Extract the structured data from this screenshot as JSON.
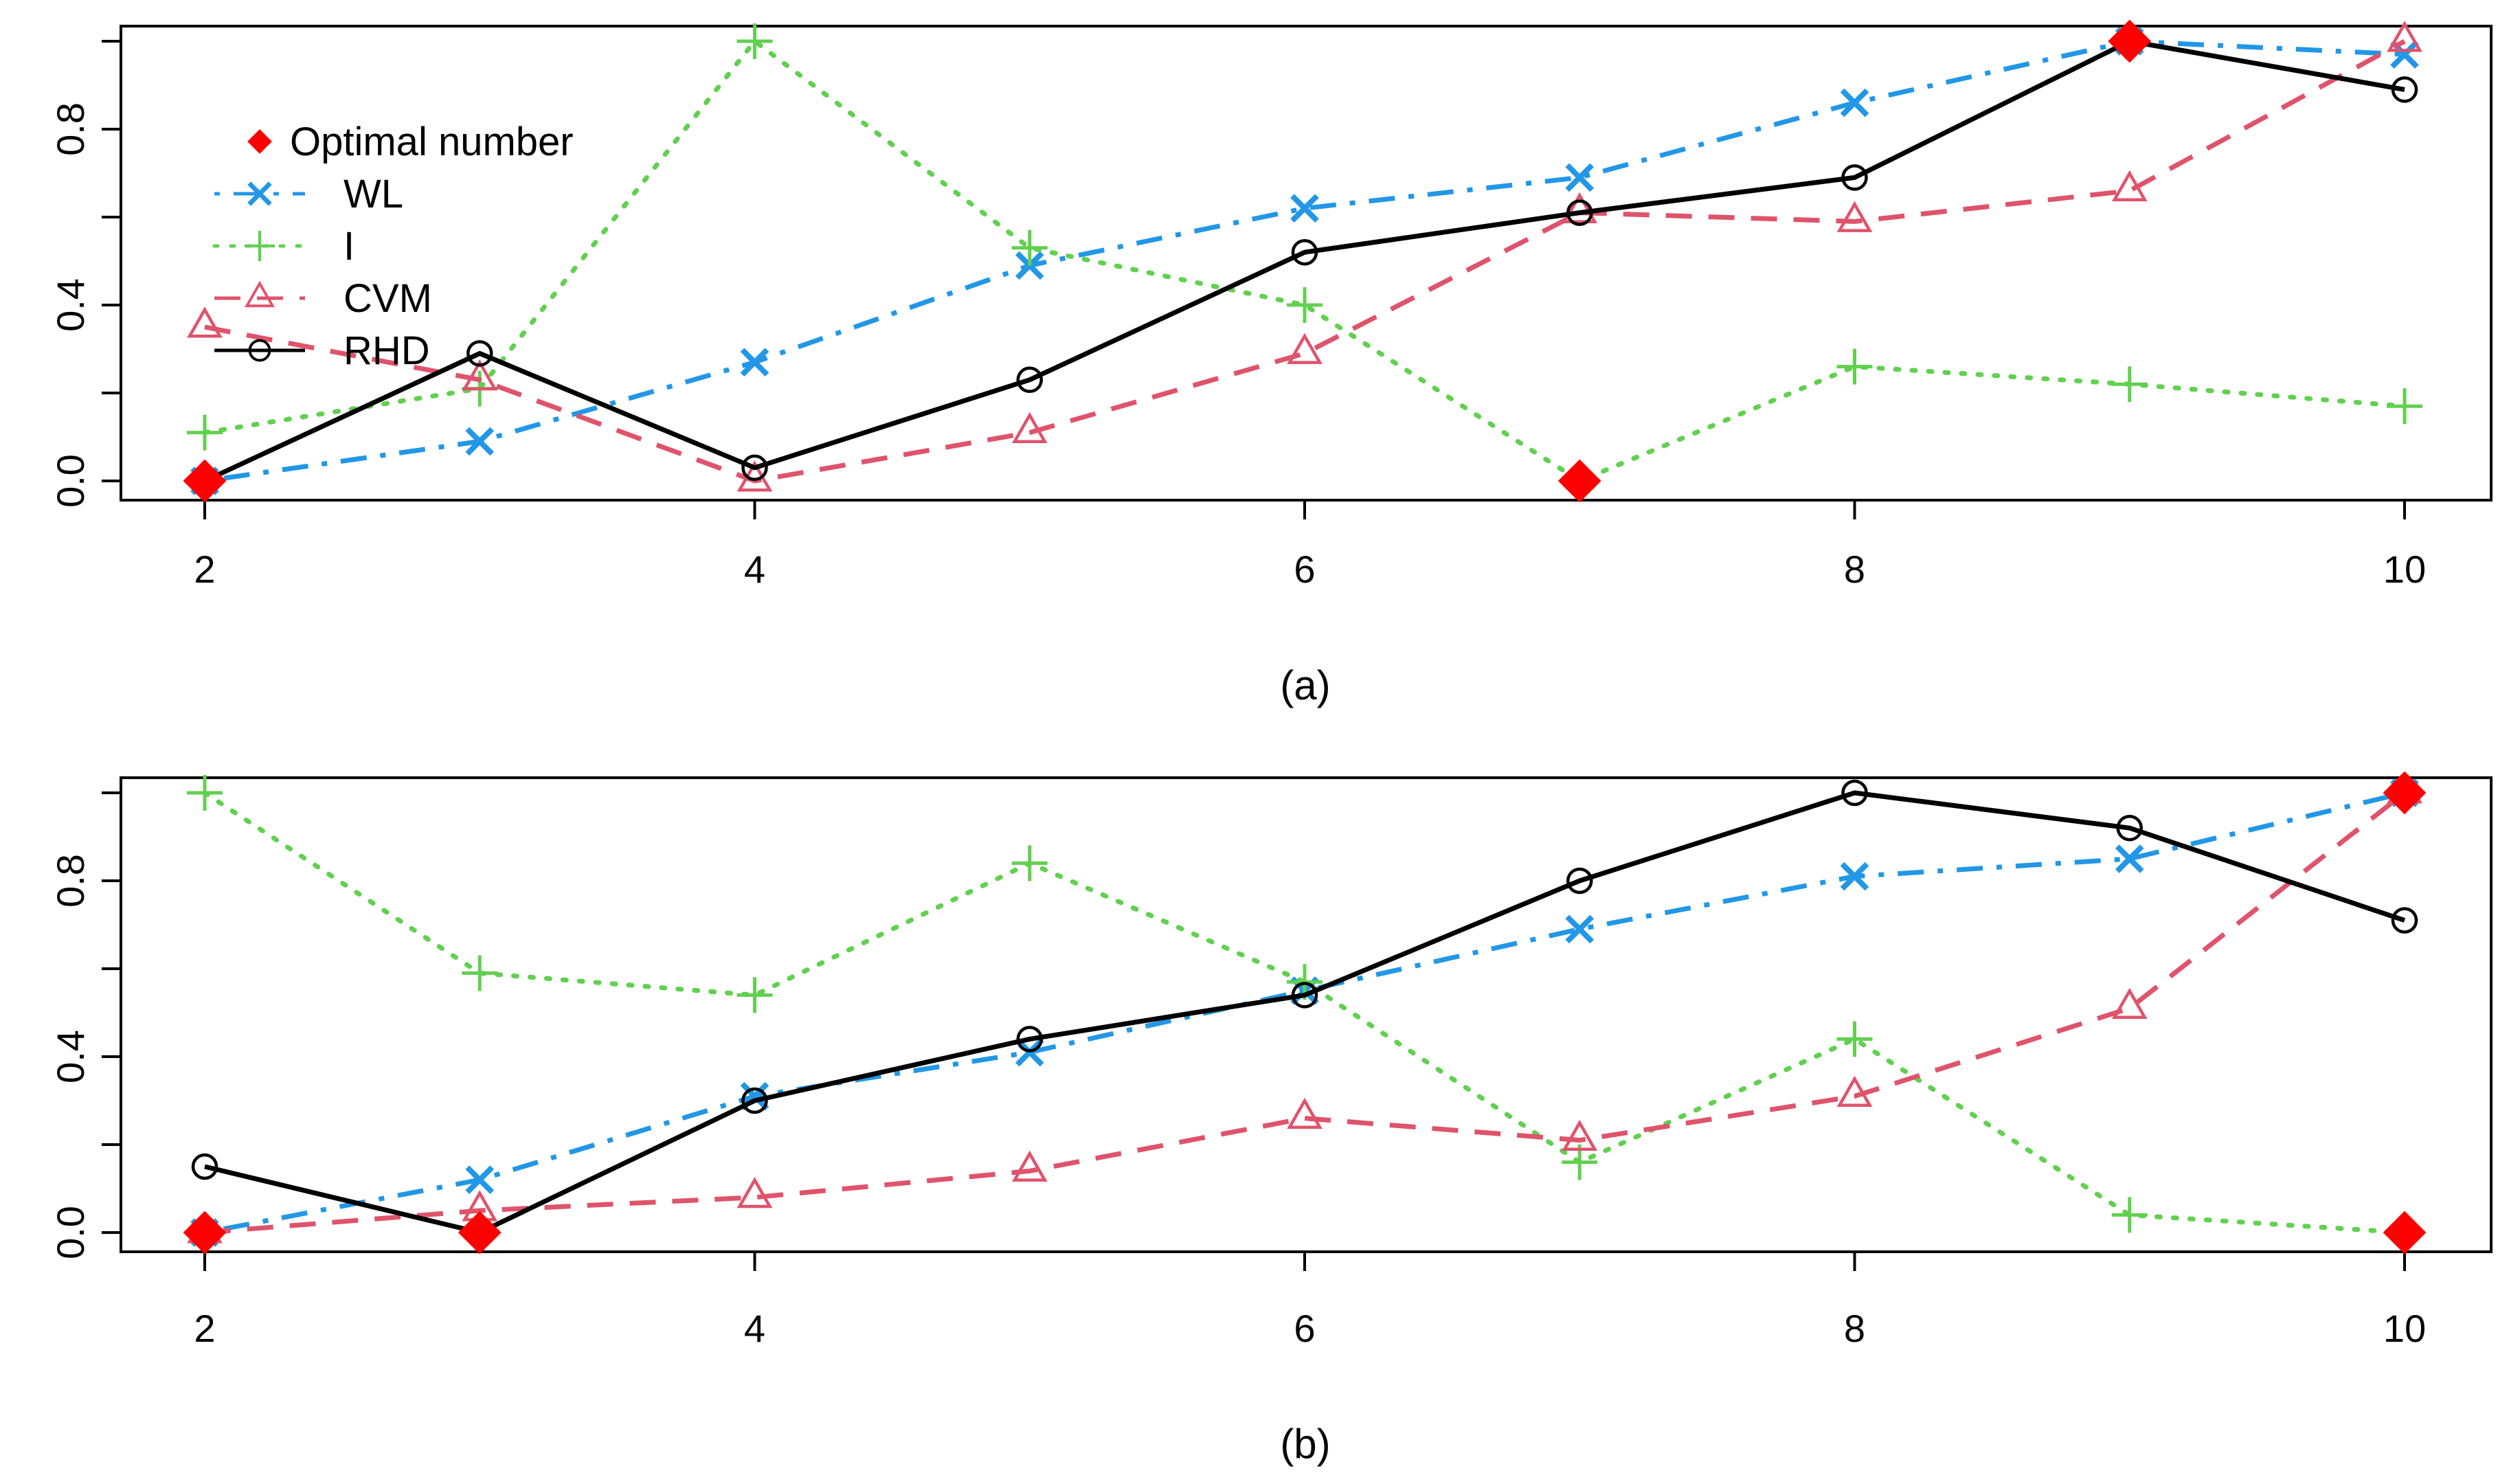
{
  "chart_data": [
    {
      "type": "line",
      "caption": "(a)",
      "x": [
        2,
        3,
        4,
        5,
        6,
        7,
        8,
        9,
        10
      ],
      "xticks": [
        "2",
        "4",
        "6",
        "8",
        "10"
      ],
      "yticks": [
        "0.0",
        "0.4",
        "0.8"
      ],
      "xlim": [
        2,
        10
      ],
      "ylim": [
        0,
        1
      ],
      "series": [
        {
          "name": "WL",
          "style": "dotdash",
          "marker": "x",
          "color": "#2297E6",
          "values": [
            0.0,
            0.09,
            0.27,
            0.49,
            0.62,
            0.69,
            0.86,
            1.0,
            0.97
          ]
        },
        {
          "name": "I",
          "style": "dotted",
          "marker": "plus",
          "color": "#61D04F",
          "values": [
            0.11,
            0.21,
            1.0,
            0.53,
            0.4,
            0.0,
            0.26,
            0.22,
            0.17
          ]
        },
        {
          "name": "CVM",
          "style": "dashed",
          "marker": "triangle",
          "color": "#DF536B",
          "values": [
            0.35,
            0.23,
            0.0,
            0.11,
            0.29,
            0.61,
            0.59,
            0.66,
            1.0
          ]
        },
        {
          "name": "RHD",
          "style": "solid",
          "marker": "circle",
          "color": "#000000",
          "values": [
            0.0,
            0.29,
            0.03,
            0.23,
            0.52,
            0.61,
            0.69,
            1.0,
            0.89
          ]
        }
      ],
      "optimal": {
        "name": "Optimal number",
        "color": "#FF0000",
        "points": [
          {
            "x": 2,
            "y": 0.0
          },
          {
            "x": 7,
            "y": 0.0
          },
          {
            "x": 9,
            "y": 1.0
          }
        ]
      },
      "legend": [
        "Optimal number",
        "WL",
        "I",
        "CVM",
        "RHD"
      ],
      "legend_position": "top-left"
    },
    {
      "type": "line",
      "caption": "(b)",
      "x": [
        2,
        3,
        4,
        5,
        6,
        7,
        8,
        9,
        10
      ],
      "xticks": [
        "2",
        "4",
        "6",
        "8",
        "10"
      ],
      "yticks": [
        "0.0",
        "0.4",
        "0.8"
      ],
      "xlim": [
        2,
        10
      ],
      "ylim": [
        0,
        1
      ],
      "series": [
        {
          "name": "WL",
          "style": "dotdash",
          "marker": "x",
          "color": "#2297E6",
          "values": [
            0.0,
            0.12,
            0.31,
            0.41,
            0.55,
            0.69,
            0.81,
            0.85,
            1.0
          ]
        },
        {
          "name": "I",
          "style": "dotted",
          "marker": "plus",
          "color": "#61D04F",
          "values": [
            1.0,
            0.59,
            0.54,
            0.84,
            0.57,
            0.16,
            0.44,
            0.04,
            0.0
          ]
        },
        {
          "name": "CVM",
          "style": "dashed",
          "marker": "triangle",
          "color": "#DF536B",
          "values": [
            0.0,
            0.05,
            0.08,
            0.14,
            0.26,
            0.21,
            0.31,
            0.51,
            1.0
          ]
        },
        {
          "name": "RHD",
          "style": "solid",
          "marker": "circle",
          "color": "#000000",
          "values": [
            0.15,
            0.0,
            0.3,
            0.44,
            0.54,
            0.8,
            1.0,
            0.92,
            0.71
          ]
        }
      ],
      "optimal": {
        "name": "Optimal number",
        "color": "#FF0000",
        "points": [
          {
            "x": 2,
            "y": 0.0
          },
          {
            "x": 3,
            "y": 0.0
          },
          {
            "x": 10,
            "y": 1.0
          },
          {
            "x": 10,
            "y": 0.0
          }
        ]
      }
    }
  ]
}
